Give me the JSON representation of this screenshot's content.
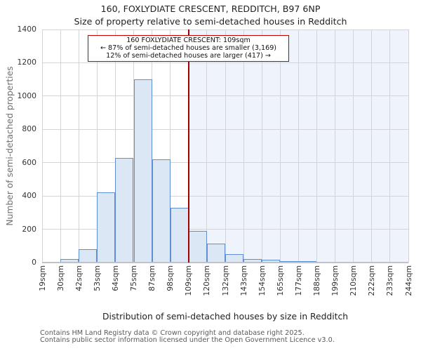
{
  "chart_data": {
    "type": "bar",
    "title": "160, FOXLYDIATE CRESCENT, REDDITCH, B97 6NP",
    "subtitle": "Size of property relative to semi-detached houses in Redditch",
    "xlabel": "Distribution of semi-detached houses by size in Redditch",
    "ylabel": "Number of semi-detached properties",
    "tick_labels": [
      "19sqm",
      "30sqm",
      "42sqm",
      "53sqm",
      "64sqm",
      "75sqm",
      "87sqm",
      "98sqm",
      "109sqm",
      "120sqm",
      "132sqm",
      "143sqm",
      "154sqm",
      "165sqm",
      "177sqm",
      "188sqm",
      "199sqm",
      "210sqm",
      "222sqm",
      "233sqm",
      "244sqm"
    ],
    "bin_edges_sqm": [
      19,
      30,
      42,
      53,
      64,
      75,
      87,
      98,
      109,
      120,
      132,
      143,
      154,
      165,
      177,
      188,
      199,
      210,
      222,
      233,
      244
    ],
    "values": [
      5,
      20,
      80,
      420,
      630,
      1100,
      620,
      330,
      190,
      115,
      50,
      20,
      15,
      8,
      8,
      0,
      0,
      0,
      0,
      0
    ],
    "ylim": [
      0,
      1400
    ],
    "ytick_step": 200,
    "grid": true,
    "legend": "none",
    "marker_value_sqm": 109,
    "annotation": {
      "line1": "160 FOXLYDIATE CRESCENT: 109sqm",
      "line2": "← 87% of semi-detached houses are smaller (3,169)",
      "line3": "12% of semi-detached houses are larger (417) →"
    },
    "colors": {
      "bar_fill": "#dce7f5",
      "bar_edge": "#5f8ed2",
      "marker_line": "#a50000",
      "annotation_border": "#c00000",
      "shade_region": "#eff3fb",
      "gridline": "#d4d4d8",
      "axis_spine": "#c2c2c6"
    }
  },
  "footer": {
    "line1": "Contains HM Land Registry data © Crown copyright and database right 2025.",
    "line2": "Contains public sector information licensed under the Open Government Licence v3.0."
  }
}
